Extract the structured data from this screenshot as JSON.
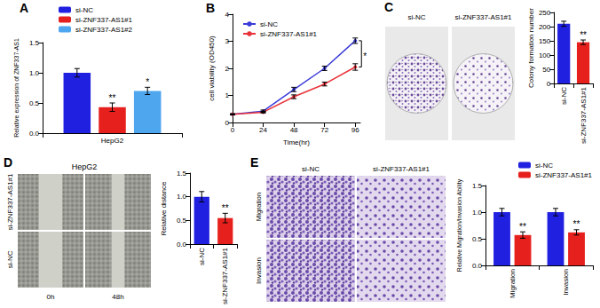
{
  "chart_data": [
    {
      "panel": "A",
      "type": "bar",
      "y_label": "Relative expression of ZNF337-AS1",
      "categories": [
        "HepG2"
      ],
      "series": [
        {
          "name": "si-NC",
          "color": "#2020e0",
          "values": [
            1.0
          ],
          "errors": [
            0.07
          ],
          "significance": [
            null
          ]
        },
        {
          "name": "si-ZNF337-AS1#1",
          "color": "#e6211d",
          "values": [
            0.43
          ],
          "errors": [
            0.07
          ],
          "significance": [
            "**"
          ]
        },
        {
          "name": "si-ZNF337-AS1#2",
          "color": "#4ea6ef",
          "values": [
            0.7
          ],
          "errors": [
            0.06
          ],
          "significance": [
            "*"
          ]
        }
      ],
      "ylim": [
        0,
        1.5
      ],
      "yticks": [
        {
          "value": 0,
          "label": "0.0"
        },
        0.5,
        {
          "value": 1,
          "label": "1.0"
        },
        1.5
      ],
      "legend": "top",
      "grid": false
    },
    {
      "panel": "B",
      "type": "line",
      "x_label": "Time(hr)",
      "y_label": "cell viability (OD450)",
      "x": [
        0,
        24,
        48,
        72,
        96
      ],
      "series": [
        {
          "name": "si-NC",
          "color": "#3b3bd9",
          "marker": "circle",
          "line_style": "solid",
          "values": [
            0.3,
            0.42,
            1.22,
            2.0,
            3.02
          ],
          "errors": [
            0.02,
            0.04,
            0.08,
            0.08,
            0.1
          ]
        },
        {
          "name": "si-ZNF337-AS1#1",
          "color": "#e8333a",
          "marker": "circle",
          "line_style": "solid",
          "values": [
            0.3,
            0.38,
            0.95,
            1.42,
            2.05
          ],
          "errors": [
            0.02,
            0.03,
            0.07,
            0.07,
            0.12
          ]
        }
      ],
      "xlim": [
        0,
        100
      ],
      "xticks": [
        0,
        24,
        48,
        72,
        96
      ],
      "ylim": [
        0,
        4
      ],
      "yticks": [
        0,
        1,
        2,
        3,
        4
      ],
      "significance": "*",
      "legend": "upper left",
      "grid": false
    },
    {
      "type": "bar",
      "y_label": "Colony formation number",
      "categories": [
        "si-NC",
        "si-ZNF337-AS1#1"
      ],
      "values": [
        210,
        145
      ],
      "errors": [
        9,
        8
      ],
      "colors": [
        "#2020e0",
        "#e6211d"
      ],
      "significance": [
        null,
        "**"
      ],
      "ylim": [
        0,
        250
      ],
      "yticks": [
        0,
        50,
        100,
        150,
        200,
        250
      ],
      "grid": false
    },
    {
      "type": "bar",
      "y_label": "Relative distance",
      "categories": [
        "si-NC",
        "si-ZNF337-AS1#1"
      ],
      "values": [
        1.0,
        0.55
      ],
      "errors": [
        0.11,
        0.1
      ],
      "colors": [
        "#2020e0",
        "#e6211d"
      ],
      "significance": [
        null,
        "**"
      ],
      "ylim": [
        0,
        1.5
      ],
      "yticks": [
        {
          "value": 0,
          "label": "0.0"
        },
        0.5,
        {
          "value": 1,
          "label": "1.0"
        },
        1.5
      ],
      "grid": false
    },
    {
      "type": "bar",
      "y_label": "Relative Migration/Invasion Ability",
      "categories": [
        "Migration",
        "Invasion"
      ],
      "series": [
        {
          "name": "si-NC",
          "color": "#2020e0",
          "values": [
            1.0,
            1.0
          ],
          "errors": [
            0.07,
            0.07
          ],
          "significance": [
            null,
            null
          ]
        },
        {
          "name": "si-ZNF337-AS1#1",
          "color": "#e6211d",
          "values": [
            0.57,
            0.62
          ],
          "errors": [
            0.06,
            0.05
          ],
          "significance": [
            "**",
            "**"
          ]
        }
      ],
      "ylim": [
        0,
        1.5
      ],
      "yticks": [
        {
          "value": 0,
          "label": "0.0"
        },
        0.5,
        {
          "value": 1,
          "label": "1.0"
        },
        1.5
      ],
      "legend": "top right",
      "grid": false
    }
  ],
  "images": [
    {
      "panel": "C",
      "columns": [
        "si-NC",
        "si-ZNF337-AS1#1"
      ]
    },
    {
      "panel": "D",
      "title": "HepG2",
      "rows": [
        "si-ZNF337-AS1#1",
        "si-NC"
      ],
      "columns": [
        "0h",
        "48h"
      ]
    },
    {
      "panel": "E",
      "rows": [
        "Migration",
        "Invasion"
      ],
      "columns": [
        "si-NC",
        "si-ZNF337-AS1#1"
      ]
    }
  ]
}
